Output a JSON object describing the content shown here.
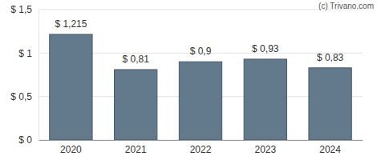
{
  "chart_data": {
    "type": "bar",
    "categories": [
      "2020",
      "2021",
      "2022",
      "2023",
      "2024"
    ],
    "values": [
      1.215,
      0.81,
      0.9,
      0.93,
      0.83
    ],
    "value_labels": [
      "$ 1,215",
      "$ 0,81",
      "$ 0,9",
      "$ 0,93",
      "$ 0,83"
    ],
    "data_labels": true,
    "color": "#63798c",
    "ylim": [
      0,
      1.5
    ],
    "yticks": [
      {
        "value": 0,
        "label": "$ 0"
      },
      {
        "value": 0.5,
        "label": "$ 0,5"
      },
      {
        "value": 1,
        "label": "$ 1"
      },
      {
        "value": 1.5,
        "label": "$ 1,5"
      }
    ],
    "grid": true,
    "annotations": [
      "(c) Trivano.com"
    ]
  }
}
